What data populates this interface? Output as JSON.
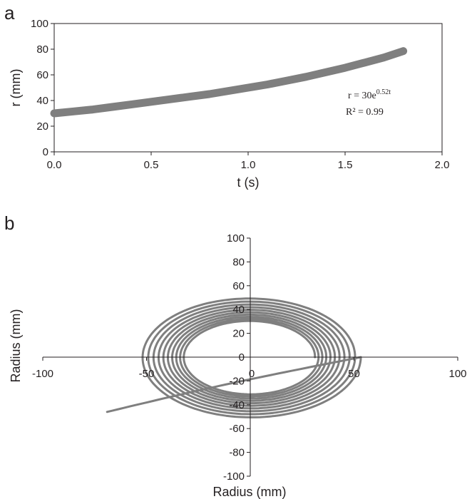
{
  "chart_data": [
    {
      "panel": "a",
      "type": "line",
      "xlabel": "t (s)",
      "ylabel": "r (mm)",
      "xlim": [
        0,
        2
      ],
      "ylim": [
        0,
        100
      ],
      "xticks": [
        "0.0",
        "0.5",
        "1.0",
        "1.5",
        "2.0"
      ],
      "yticks": [
        "0",
        "20",
        "40",
        "60",
        "80",
        "100"
      ],
      "series": [
        {
          "x": [
            0.0,
            0.1,
            0.2,
            0.3,
            0.4,
            0.5,
            0.6,
            0.7,
            0.8,
            0.9,
            1.0,
            1.1,
            1.2,
            1.3,
            1.4,
            1.5,
            1.6,
            1.7,
            1.8
          ],
          "y": [
            30,
            31.5,
            33,
            35,
            37,
            39,
            41,
            43,
            45,
            47.5,
            50,
            52.5,
            55.5,
            58.5,
            62,
            65.5,
            69.5,
            73.5,
            78.5
          ],
          "color": "#7f7f7f"
        }
      ],
      "annotations": {
        "equation_base": "r = 30e",
        "equation_exp": "0.52t",
        "r_squared": "R² = 0.99"
      },
      "grid": false,
      "frame": true
    },
    {
      "panel": "b",
      "type": "line",
      "xlabel": "Radius (mm)",
      "ylabel": "Radius (mm)",
      "xlim": [
        -100,
        100
      ],
      "ylim": [
        -100,
        100
      ],
      "xticks": [
        "-100",
        "-50",
        "0",
        "50",
        "100"
      ],
      "yticks": [
        "-100",
        "-80",
        "-60",
        "-40",
        "-20",
        "0",
        "20",
        "40",
        "60",
        "80",
        "100"
      ],
      "spiral": {
        "r0_mm": 30,
        "growth_per_turn": 1.055,
        "turns": 10,
        "x_stretch": 1.04,
        "start_angle_deg": 0,
        "end_point": [
          -69,
          -46
        ],
        "color": "#7f7f7f"
      },
      "grid": false,
      "legend": "none"
    }
  ]
}
